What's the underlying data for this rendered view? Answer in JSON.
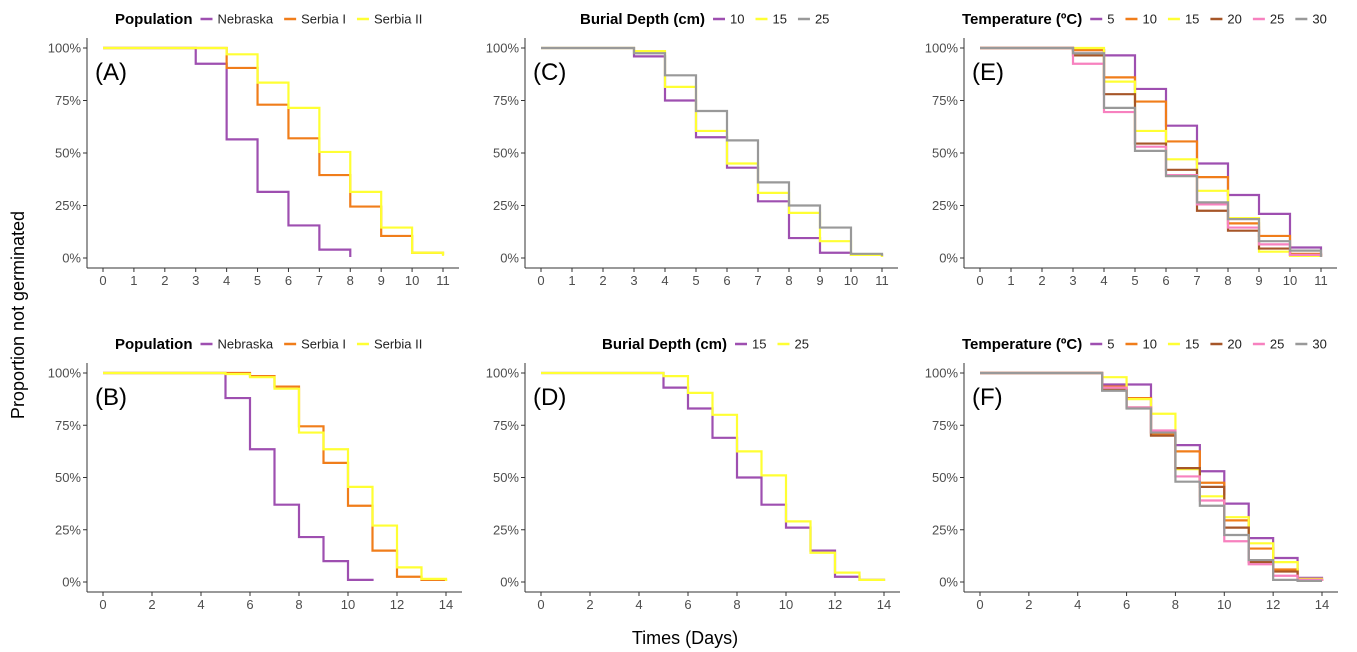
{
  "figure": {
    "ylabel": "Proportion not germinated",
    "xlabel": "Times (Days)"
  },
  "chart_data": [
    {
      "panel": "(A)",
      "type": "line",
      "step": true,
      "legend_title": "Population",
      "xlim": [
        0,
        11
      ],
      "x_ticks": [
        0,
        1,
        2,
        3,
        4,
        5,
        6,
        7,
        8,
        9,
        10,
        11
      ],
      "ylim": [
        0,
        1
      ],
      "y_ticks": [
        0,
        0.25,
        0.5,
        0.75,
        1
      ],
      "y_tick_labels": [
        "0%",
        "25%",
        "50%",
        "75%",
        "100%"
      ],
      "series": [
        {
          "name": "Nebraska",
          "color": "#9e4fb0",
          "x": [
            0,
            3,
            4,
            5,
            6,
            7,
            8
          ],
          "y": [
            1.0,
            0.925,
            0.565,
            0.315,
            0.155,
            0.04,
            0.005
          ]
        },
        {
          "name": "Serbia I",
          "color": "#f07d1a",
          "x": [
            0,
            4,
            5,
            6,
            7,
            8,
            9,
            10,
            11
          ],
          "y": [
            1.0,
            0.905,
            0.73,
            0.57,
            0.395,
            0.245,
            0.105,
            0.025,
            0.015
          ]
        },
        {
          "name": "Serbia II",
          "color": "#ffff33",
          "x": [
            0,
            4,
            5,
            6,
            7,
            8,
            9,
            10,
            11
          ],
          "y": [
            1.0,
            0.97,
            0.835,
            0.715,
            0.505,
            0.315,
            0.145,
            0.025,
            0.01
          ]
        }
      ]
    },
    {
      "panel": "(B)",
      "type": "line",
      "step": true,
      "legend_title": "Population",
      "xlim": [
        0,
        14
      ],
      "x_ticks": [
        0,
        2,
        4,
        6,
        8,
        10,
        12,
        14
      ],
      "ylim": [
        0,
        1
      ],
      "y_ticks": [
        0,
        0.25,
        0.5,
        0.75,
        1
      ],
      "y_tick_labels": [
        "0%",
        "25%",
        "50%",
        "75%",
        "100%"
      ],
      "series": [
        {
          "name": "Nebraska",
          "color": "#9e4fb0",
          "x": [
            0,
            5,
            6,
            7,
            8,
            9,
            10,
            11
          ],
          "y": [
            1.0,
            0.88,
            0.635,
            0.37,
            0.215,
            0.1,
            0.01,
            0.005
          ]
        },
        {
          "name": "Serbia I",
          "color": "#f07d1a",
          "x": [
            0,
            5,
            6,
            7,
            8,
            9,
            10,
            11,
            12,
            13,
            14
          ],
          "y": [
            1.0,
            1.0,
            0.985,
            0.935,
            0.745,
            0.57,
            0.365,
            0.15,
            0.025,
            0.01,
            0.005
          ]
        },
        {
          "name": "Serbia II",
          "color": "#ffff33",
          "x": [
            0,
            5,
            6,
            7,
            8,
            9,
            10,
            11,
            12,
            13,
            14
          ],
          "y": [
            1.0,
            0.995,
            0.98,
            0.925,
            0.715,
            0.635,
            0.455,
            0.27,
            0.07,
            0.015,
            0.005
          ]
        }
      ]
    },
    {
      "panel": "(C)",
      "type": "line",
      "step": true,
      "legend_title": "Burial Depth (cm)",
      "xlim": [
        0,
        11
      ],
      "x_ticks": [
        0,
        1,
        2,
        3,
        4,
        5,
        6,
        7,
        8,
        9,
        10,
        11
      ],
      "ylim": [
        0,
        1
      ],
      "y_ticks": [
        0,
        0.25,
        0.5,
        0.75,
        1
      ],
      "y_tick_labels": [
        "0%",
        "25%",
        "50%",
        "75%",
        "100%"
      ],
      "series": [
        {
          "name": "10",
          "color": "#9e4fb0",
          "x": [
            0,
            3,
            4,
            5,
            6,
            7,
            8,
            9,
            10,
            11
          ],
          "y": [
            1.0,
            0.96,
            0.75,
            0.575,
            0.43,
            0.27,
            0.095,
            0.025,
            0.015,
            0.005
          ]
        },
        {
          "name": "15",
          "color": "#ffff33",
          "x": [
            0,
            3,
            4,
            5,
            6,
            7,
            8,
            9,
            10,
            11
          ],
          "y": [
            1.0,
            0.985,
            0.815,
            0.605,
            0.45,
            0.31,
            0.215,
            0.08,
            0.015,
            0.005
          ]
        },
        {
          "name": "25",
          "color": "#999999",
          "x": [
            0,
            3,
            4,
            5,
            6,
            7,
            8,
            9,
            10,
            11
          ],
          "y": [
            1.0,
            0.975,
            0.87,
            0.7,
            0.56,
            0.36,
            0.25,
            0.145,
            0.02,
            0.01
          ]
        }
      ]
    },
    {
      "panel": "(D)",
      "type": "line",
      "step": true,
      "legend_title": "Burial Depth (cm)",
      "xlim": [
        0,
        14
      ],
      "x_ticks": [
        0,
        2,
        4,
        6,
        8,
        10,
        12,
        14
      ],
      "ylim": [
        0,
        1
      ],
      "y_ticks": [
        0,
        0.25,
        0.5,
        0.75,
        1
      ],
      "y_tick_labels": [
        "0%",
        "25%",
        "50%",
        "75%",
        "100%"
      ],
      "series": [
        {
          "name": "15",
          "color": "#9e4fb0",
          "x": [
            0,
            5,
            6,
            7,
            8,
            9,
            10,
            11,
            12,
            13,
            14
          ],
          "y": [
            1.0,
            0.93,
            0.83,
            0.69,
            0.5,
            0.37,
            0.26,
            0.15,
            0.025,
            0.01,
            0.005
          ]
        },
        {
          "name": "25",
          "color": "#ffff33",
          "x": [
            0,
            5,
            6,
            7,
            8,
            9,
            10,
            11,
            12,
            13,
            14
          ],
          "y": [
            1.0,
            0.985,
            0.905,
            0.8,
            0.625,
            0.51,
            0.29,
            0.14,
            0.045,
            0.01,
            0.005
          ]
        }
      ]
    },
    {
      "panel": "(E)",
      "type": "line",
      "step": true,
      "legend_title": "Temperature (ºC)",
      "xlim": [
        0,
        11
      ],
      "x_ticks": [
        0,
        1,
        2,
        3,
        4,
        5,
        6,
        7,
        8,
        9,
        10,
        11
      ],
      "ylim": [
        0,
        1
      ],
      "y_ticks": [
        0,
        0.25,
        0.5,
        0.75,
        1
      ],
      "y_tick_labels": [
        "0%",
        "25%",
        "50%",
        "75%",
        "100%"
      ],
      "series": [
        {
          "name": "5",
          "color": "#9e4fb0",
          "x": [
            0,
            3,
            4,
            5,
            6,
            7,
            8,
            9,
            10,
            11
          ],
          "y": [
            1.0,
            0.99,
            0.965,
            0.805,
            0.63,
            0.45,
            0.3,
            0.21,
            0.05,
            0.01
          ]
        },
        {
          "name": "10",
          "color": "#f07d1a",
          "x": [
            0,
            3,
            4,
            5,
            6,
            7,
            8,
            9,
            10,
            11
          ],
          "y": [
            1.0,
            0.99,
            0.86,
            0.745,
            0.555,
            0.385,
            0.165,
            0.105,
            0.02,
            0.01
          ]
        },
        {
          "name": "15",
          "color": "#ffff33",
          "x": [
            0,
            3,
            4,
            5,
            6,
            7,
            8,
            9,
            10,
            11
          ],
          "y": [
            1.0,
            1.0,
            0.84,
            0.605,
            0.47,
            0.32,
            0.19,
            0.03,
            0.01,
            0.005
          ]
        },
        {
          "name": "20",
          "color": "#a65628",
          "x": [
            0,
            3,
            4,
            5,
            6,
            7,
            8,
            9,
            10,
            11
          ],
          "y": [
            1.0,
            0.965,
            0.78,
            0.545,
            0.42,
            0.225,
            0.13,
            0.045,
            0.015,
            0.005
          ]
        },
        {
          "name": "25",
          "color": "#f781bf",
          "x": [
            0,
            3,
            4,
            5,
            6,
            7,
            8,
            9,
            10,
            11
          ],
          "y": [
            1.0,
            0.925,
            0.695,
            0.53,
            0.395,
            0.255,
            0.145,
            0.065,
            0.015,
            0.005
          ]
        },
        {
          "name": "30",
          "color": "#999999",
          "x": [
            0,
            3,
            4,
            5,
            6,
            7,
            8,
            9,
            10,
            11
          ],
          "y": [
            1.0,
            0.975,
            0.715,
            0.51,
            0.39,
            0.265,
            0.185,
            0.08,
            0.035,
            0.005
          ]
        }
      ]
    },
    {
      "panel": "(F)",
      "type": "line",
      "step": true,
      "legend_title": "Temperature (ºC)",
      "xlim": [
        0,
        14
      ],
      "x_ticks": [
        0,
        2,
        4,
        6,
        8,
        10,
        12,
        14
      ],
      "ylim": [
        0,
        1
      ],
      "y_ticks": [
        0,
        0.25,
        0.5,
        0.75,
        1
      ],
      "y_tick_labels": [
        "0%",
        "25%",
        "50%",
        "75%",
        "100%"
      ],
      "series": [
        {
          "name": "5",
          "color": "#9e4fb0",
          "x": [
            0,
            5,
            6,
            7,
            8,
            9,
            10,
            11,
            12,
            13,
            14
          ],
          "y": [
            1.0,
            0.945,
            0.945,
            0.715,
            0.655,
            0.53,
            0.375,
            0.21,
            0.115,
            0.02,
            0.005
          ]
        },
        {
          "name": "10",
          "color": "#f07d1a",
          "x": [
            0,
            5,
            6,
            7,
            8,
            9,
            10,
            11,
            12,
            13,
            14
          ],
          "y": [
            1.0,
            0.935,
            0.88,
            0.705,
            0.625,
            0.475,
            0.295,
            0.16,
            0.06,
            0.01,
            0.005
          ]
        },
        {
          "name": "15",
          "color": "#ffff33",
          "x": [
            0,
            5,
            6,
            7,
            8,
            9,
            10,
            11,
            12,
            13,
            14
          ],
          "y": [
            1.0,
            0.98,
            0.875,
            0.805,
            0.54,
            0.41,
            0.31,
            0.185,
            0.095,
            0.015,
            0.005
          ]
        },
        {
          "name": "20",
          "color": "#a65628",
          "x": [
            0,
            5,
            6,
            7,
            8,
            9,
            10,
            11,
            12,
            13,
            14
          ],
          "y": [
            1.0,
            0.92,
            0.835,
            0.7,
            0.545,
            0.455,
            0.26,
            0.095,
            0.05,
            0.01,
            0.005
          ]
        },
        {
          "name": "25",
          "color": "#f781bf",
          "x": [
            0,
            5,
            6,
            7,
            8,
            9,
            10,
            11,
            12,
            13,
            14
          ],
          "y": [
            1.0,
            0.93,
            0.835,
            0.725,
            0.505,
            0.39,
            0.195,
            0.085,
            0.03,
            0.01,
            0.005
          ]
        },
        {
          "name": "30",
          "color": "#999999",
          "x": [
            0,
            5,
            6,
            7,
            8,
            9,
            10,
            11,
            12,
            13,
            14
          ],
          "y": [
            1.0,
            0.915,
            0.83,
            0.715,
            0.48,
            0.365,
            0.225,
            0.105,
            0.01,
            0.005,
            0.005
          ]
        }
      ]
    }
  ]
}
